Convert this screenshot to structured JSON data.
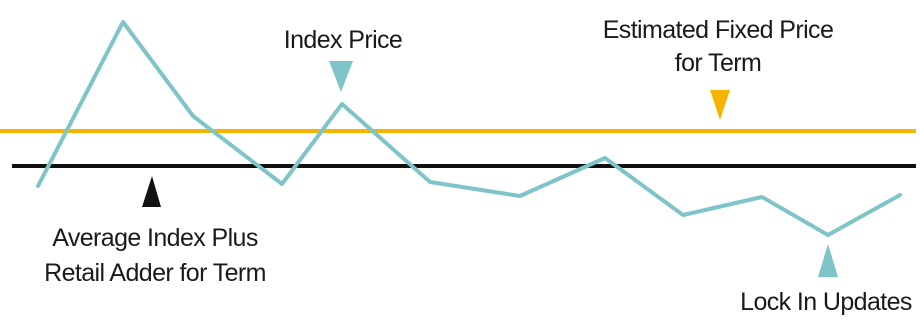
{
  "labels": {
    "index_price": "Index Price",
    "fixed_price_line1": "Estimated Fixed Price",
    "fixed_price_line2": "for Term",
    "average_line1": "Average Index Plus",
    "average_line2": "Retail Adder for Term",
    "lock_in": "Lock In Updates"
  },
  "colors": {
    "index_line": "#7ec4c8",
    "fixed_line": "#f5b400",
    "average_line": "#111111",
    "text": "#1a1a1a"
  }
}
